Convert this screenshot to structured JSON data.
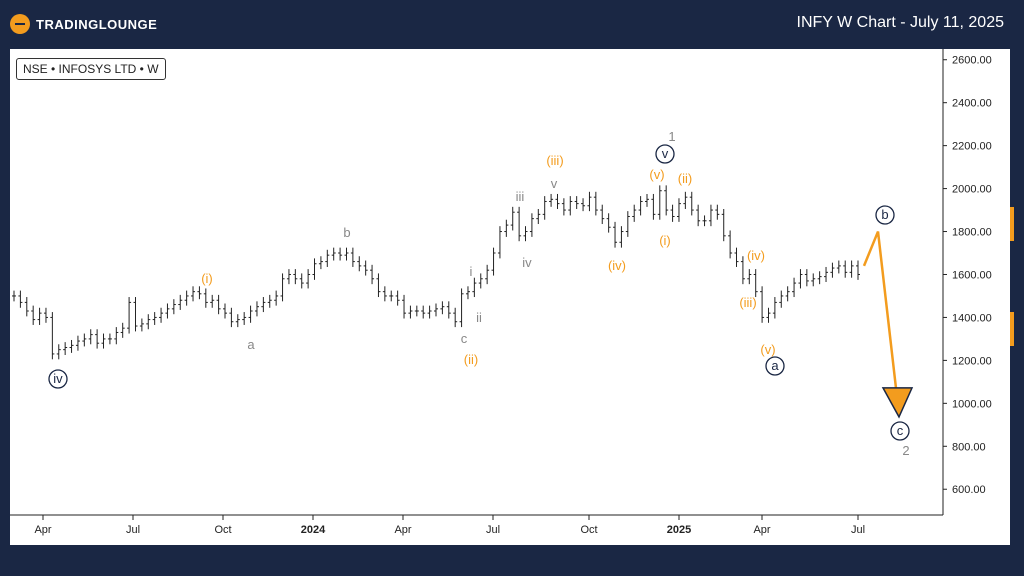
{
  "header": {
    "brand": "TRADINGLOUNGE",
    "title": "INFY W Chart - July 11, 2025"
  },
  "symbol_label": "NSE • INFOSYS LTD • W",
  "colors": {
    "background": "#1a2744",
    "accent": "#f39c1e",
    "navy": "#1a2744",
    "grey": "#888888"
  },
  "chart_data": {
    "type": "ohlc",
    "x_ticks": [
      "Apr",
      "Jul",
      "Oct",
      "2024",
      "Apr",
      "Jul",
      "Oct",
      "2025",
      "Apr",
      "Jul"
    ],
    "y_ticks": [
      600,
      800,
      1000,
      1200,
      1400,
      1600,
      1800,
      2000,
      2200,
      2400,
      2600
    ],
    "y_tick_labels": [
      "600.00",
      "800.00",
      "1000.00",
      "1200.00",
      "1400.00",
      "1600.00",
      "1800.00",
      "2000.00",
      "2200.00",
      "2400.00",
      "2600.00"
    ],
    "ylim": [
      480,
      2650
    ],
    "series_close": [
      1500,
      1470,
      1430,
      1390,
      1420,
      1400,
      1230,
      1250,
      1260,
      1270,
      1290,
      1300,
      1320,
      1280,
      1300,
      1300,
      1330,
      1350,
      1470,
      1360,
      1370,
      1390,
      1400,
      1420,
      1440,
      1460,
      1480,
      1500,
      1520,
      1510,
      1470,
      1480,
      1440,
      1420,
      1380,
      1390,
      1400,
      1430,
      1450,
      1470,
      1480,
      1500,
      1580,
      1600,
      1580,
      1560,
      1600,
      1650,
      1660,
      1690,
      1700,
      1690,
      1700,
      1660,
      1640,
      1620,
      1580,
      1520,
      1500,
      1500,
      1480,
      1420,
      1430,
      1430,
      1420,
      1430,
      1440,
      1450,
      1420,
      1380,
      1510,
      1520,
      1560,
      1580,
      1620,
      1700,
      1800,
      1830,
      1890,
      1780,
      1800,
      1860,
      1880,
      1940,
      1950,
      1930,
      1900,
      1940,
      1930,
      1920,
      1960,
      1900,
      1860,
      1820,
      1750,
      1800,
      1870,
      1900,
      1940,
      1950,
      1880,
      1990,
      1900,
      1870,
      1930,
      1960,
      1900,
      1850,
      1850,
      1900,
      1880,
      1780,
      1700,
      1660,
      1580,
      1600,
      1520,
      1400,
      1420,
      1470,
      1500,
      1520,
      1560,
      1600,
      1570,
      1580,
      1590,
      1610,
      1630,
      1640,
      1610,
      1640,
      1600
    ],
    "annotations": [
      {
        "text": "ⓘv",
        "group": "navy"
      },
      {
        "text": "(i)",
        "group": "orange"
      },
      {
        "text": "a",
        "group": "grey"
      },
      {
        "text": "b",
        "group": "grey"
      },
      {
        "text": "c",
        "group": "grey"
      },
      {
        "text": "(ii)",
        "group": "orange"
      },
      {
        "text": "i",
        "group": "grey"
      },
      {
        "text": "ii",
        "group": "grey"
      },
      {
        "text": "iii",
        "group": "grey"
      },
      {
        "text": "iv",
        "group": "grey"
      },
      {
        "text": "v",
        "group": "grey"
      },
      {
        "text": "(iii)",
        "group": "orange"
      },
      {
        "text": "(iv)",
        "group": "orange"
      },
      {
        "text": "(v)",
        "group": "orange"
      },
      {
        "text": "1",
        "group": "grey"
      },
      {
        "text": "(i)",
        "group": "orange"
      },
      {
        "text": "(ii)",
        "group": "orange"
      },
      {
        "text": "(iii)",
        "group": "orange"
      },
      {
        "text": "(iv)",
        "group": "orange"
      },
      {
        "text": "(v)",
        "group": "orange"
      },
      {
        "text": "2",
        "group": "grey"
      }
    ],
    "circled_labels": [
      "iv",
      "v",
      "a",
      "b",
      "c"
    ],
    "projection": [
      {
        "label": "b",
        "y": 1800
      },
      {
        "label": "c",
        "y": 960
      }
    ]
  }
}
